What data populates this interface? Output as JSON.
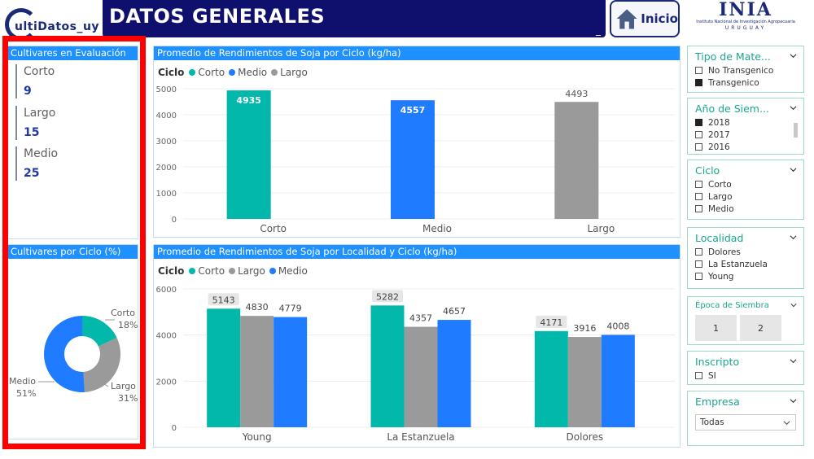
{
  "header": {
    "brand": "ultiDatos_uy",
    "title": "DATOS GENERALES",
    "title_suffix": "_",
    "home_label": "Inicio",
    "inia_logo": "INIA",
    "inia_subtitle": "Instituto Nacional de Investigación Agropecuaria",
    "inia_country": "URUGUAY"
  },
  "colors": {
    "teal": "#01b8aa",
    "blue": "#1f7bff",
    "gray": "#9a9a9a",
    "accent": "#1e90ff",
    "title_bg": "#0f0f6e",
    "highlight": "#ff0000"
  },
  "kpi_card": {
    "title": "Cultivares en Evaluación",
    "items": [
      {
        "label": "Corto",
        "value": "9"
      },
      {
        "label": "Largo",
        "value": "15"
      },
      {
        "label": "Medio",
        "value": "25"
      }
    ]
  },
  "donut_card": {
    "title": "Cultivares por Ciclo (%)",
    "slices": [
      {
        "label": "Corto",
        "pct": "18%",
        "value": 18,
        "color": "#01b8aa"
      },
      {
        "label": "Largo",
        "pct": "31%",
        "value": 31,
        "color": "#9a9a9a"
      },
      {
        "label": "Medio",
        "pct": "51%",
        "value": 51,
        "color": "#1f7bff"
      }
    ]
  },
  "chart_data": [
    {
      "type": "bar",
      "title": "Promedio de Rendimientos de Soja por Ciclo (kg/ha)",
      "legend_title": "Ciclo",
      "legend": [
        "Corto",
        "Medio",
        "Largo"
      ],
      "categories": [
        "Corto",
        "Medio",
        "Largo"
      ],
      "values": [
        4935,
        4557,
        4493
      ],
      "value_labels": [
        "4935",
        "4557",
        "4493"
      ],
      "colors": [
        "#01b8aa",
        "#1f7bff",
        "#9a9a9a"
      ],
      "ylim": [
        0,
        5000
      ],
      "yticks": [
        "0",
        "1000",
        "2000",
        "3000",
        "4000",
        "5000"
      ],
      "grid": true
    },
    {
      "type": "bar",
      "title": "Promedio de Rendimientos de Soja por Localidad y Ciclo (kg/ha)",
      "legend_title": "Ciclo",
      "legend": [
        "Corto",
        "Largo",
        "Medio"
      ],
      "categories": [
        "Young",
        "La Estanzuela",
        "Dolores"
      ],
      "series": [
        {
          "name": "Corto",
          "values": [
            5143,
            5282,
            4171
          ],
          "labels": [
            "5143",
            "5282",
            "4171"
          ],
          "color": "#01b8aa"
        },
        {
          "name": "Largo",
          "values": [
            4830,
            4357,
            3916
          ],
          "labels": [
            "4830",
            "4357",
            "3916"
          ],
          "color": "#9a9a9a"
        },
        {
          "name": "Medio",
          "values": [
            4779,
            4657,
            4008
          ],
          "labels": [
            "4779",
            "4657",
            "4008"
          ],
          "color": "#1f7bff"
        }
      ],
      "ylim": [
        0,
        6000
      ],
      "yticks": [
        "0",
        "2000",
        "4000",
        "6000"
      ],
      "grid": true
    }
  ],
  "slicers": {
    "tipo": {
      "title": "Tipo de Mate...",
      "items": [
        {
          "label": "No Transgenico",
          "checked": false
        },
        {
          "label": "Transgenico",
          "checked": true
        }
      ]
    },
    "anio": {
      "title": "Año de Siem...",
      "items": [
        {
          "label": "2018",
          "checked": true
        },
        {
          "label": "2017",
          "checked": false
        },
        {
          "label": "2016",
          "checked": false
        }
      ]
    },
    "ciclo": {
      "title": "Ciclo",
      "items": [
        {
          "label": "Corto",
          "checked": false
        },
        {
          "label": "Largo",
          "checked": false
        },
        {
          "label": "Medio",
          "checked": false
        }
      ]
    },
    "localidad": {
      "title": "Localidad",
      "items": [
        {
          "label": "Dolores",
          "checked": false
        },
        {
          "label": "La Estanzuela",
          "checked": false
        },
        {
          "label": "Young",
          "checked": false
        }
      ]
    },
    "epoca": {
      "title": "Época de Siembra",
      "tiles": [
        "1",
        "2"
      ]
    },
    "inscripto": {
      "title": "Inscripto",
      "items": [
        {
          "label": "SI",
          "checked": false
        }
      ]
    },
    "empresa": {
      "title": "Empresa",
      "selected": "Todas"
    }
  }
}
